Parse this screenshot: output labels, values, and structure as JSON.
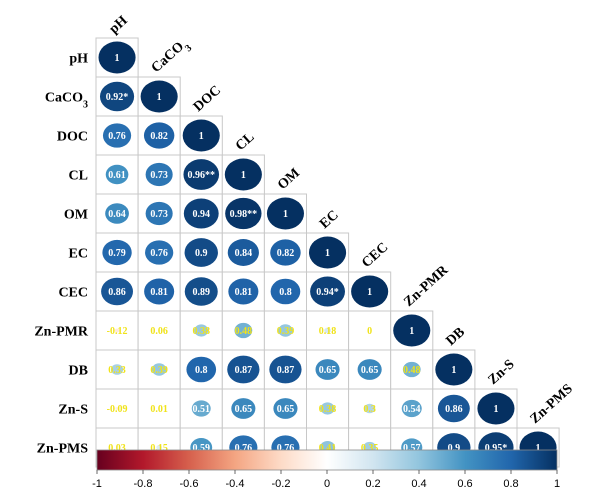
{
  "chart_data": {
    "type": "heatmap",
    "variables": [
      "pH",
      "CaCO3",
      "DOC",
      "CL",
      "OM",
      "EC",
      "CEC",
      "Zn-PMR",
      "DB",
      "Zn-S",
      "Zn-PMS"
    ],
    "row_labels": [
      "pH",
      "CaCO",
      "DOC",
      "CL",
      "OM",
      "EC",
      "CEC",
      "Zn-PMR",
      "DB",
      "Zn-S",
      "Zn-PMS"
    ],
    "col_labels": [
      "pH",
      "CaCO",
      "DOC",
      "CL",
      "OM",
      "EC",
      "CEC",
      "Zn-PMR",
      "DB",
      "Zn-S",
      "Zn-PMS"
    ],
    "subscript_index": 1,
    "subscript_text": "3",
    "matrix_lower": [
      [
        1
      ],
      [
        0.92,
        1
      ],
      [
        0.76,
        0.82,
        1
      ],
      [
        0.61,
        0.73,
        0.96,
        1
      ],
      [
        0.64,
        0.73,
        0.94,
        0.98,
        1
      ],
      [
        0.79,
        0.76,
        0.9,
        0.84,
        0.82,
        1
      ],
      [
        0.86,
        0.81,
        0.89,
        0.81,
        0.8,
        0.94,
        1
      ],
      [
        -0.12,
        0.06,
        0.38,
        0.48,
        0.39,
        0.18,
        0,
        1
      ],
      [
        0.33,
        0.39,
        0.8,
        0.87,
        0.87,
        0.65,
        0.65,
        0.48,
        1
      ],
      [
        -0.09,
        0.01,
        0.51,
        0.65,
        0.65,
        0.38,
        0.3,
        0.54,
        0.86,
        1
      ],
      [
        0.03,
        0.15,
        0.59,
        0.76,
        0.76,
        0.41,
        0.35,
        0.57,
        0.9,
        0.95,
        1
      ]
    ],
    "cell_labels": [
      [
        "1"
      ],
      [
        "0.92*",
        "1"
      ],
      [
        "0.76",
        "0.82",
        "1"
      ],
      [
        "0.61",
        "0.73",
        "0.96**",
        "1"
      ],
      [
        "0.64",
        "0.73",
        "0.94",
        "0.98**",
        "1"
      ],
      [
        "0.79",
        "0.76",
        "0.9",
        "0.84",
        "0.82",
        "1"
      ],
      [
        "0.86",
        "0.81",
        "0.89",
        "0.81",
        "0.8",
        "0.94*",
        "1"
      ],
      [
        "-0.12",
        "0.06",
        "0.38",
        "0.48",
        "0.39",
        "0.18",
        "0",
        "1"
      ],
      [
        "0.33",
        "0.39",
        "0.8",
        "0.87",
        "0.87",
        "0.65",
        "0.65",
        "0.48",
        "1"
      ],
      [
        "-0.09",
        "0.01",
        "0.51",
        "0.65",
        "0.65",
        "0.38",
        "0.3",
        "0.54",
        "0.86",
        "1"
      ],
      [
        "0.03",
        "0.15",
        "0.59",
        "0.76",
        "0.76",
        "0.41",
        "0.35",
        "0.57",
        "0.9",
        "0.95*",
        "1"
      ]
    ],
    "colorbar": {
      "range": [
        -1,
        1
      ],
      "ticks": [
        "-1",
        "-0.8",
        "-0.6",
        "-0.4",
        "-0.2",
        "0",
        "0.2",
        "0.4",
        "0.6",
        "0.8",
        "1"
      ],
      "tick_values": [
        -1,
        -0.8,
        -0.6,
        -0.4,
        -0.2,
        0,
        0.2,
        0.4,
        0.6,
        0.8,
        1
      ],
      "colors": [
        "#67001f",
        "#b2182b",
        "#d6604d",
        "#f4a582",
        "#fddbc7",
        "#ffffff",
        "#d1e5f0",
        "#92c5de",
        "#4393c3",
        "#2166ac",
        "#053061"
      ],
      "placement": "bottom"
    },
    "label_color_light": "#ffffff",
    "label_color_weak": "#f0e31a",
    "grid": true
  }
}
